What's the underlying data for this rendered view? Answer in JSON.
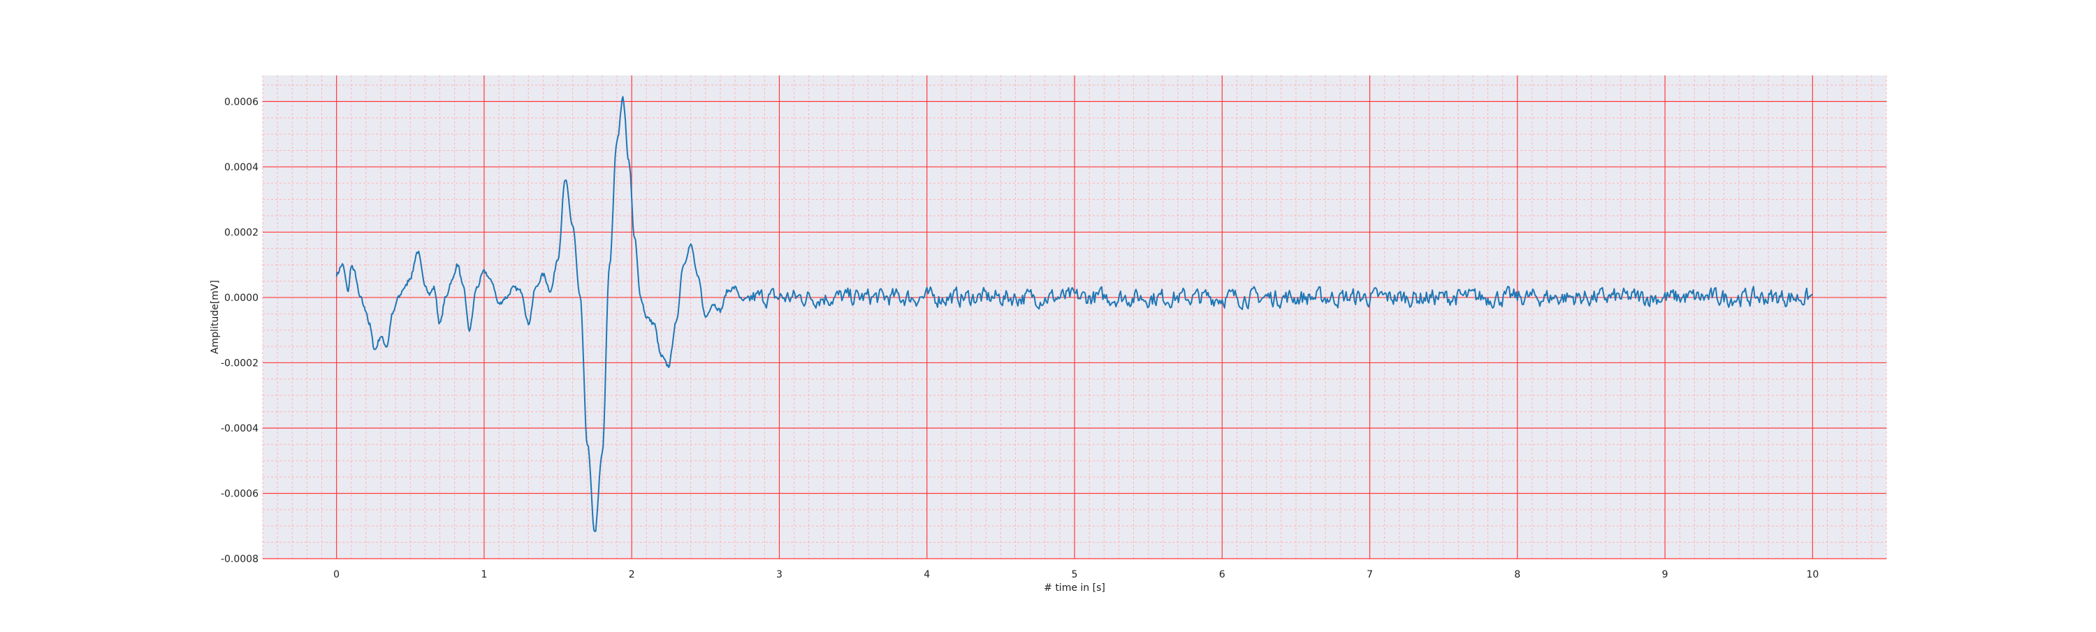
{
  "chart_data": {
    "type": "line",
    "title": "",
    "xlabel": "# time in [s]",
    "ylabel": "Amplitude[mV]",
    "xlim": [
      -0.5,
      10.5
    ],
    "ylim": [
      -0.0008,
      0.00068
    ],
    "grid": {
      "major": true,
      "minor": true,
      "major_color": "#ff3b3b",
      "minor_color": "#ffb3b3"
    },
    "background_color": "#eaeaf2",
    "line_color": "#1f77b4",
    "x_ticks": [
      0,
      1,
      2,
      3,
      4,
      5,
      6,
      7,
      8,
      9,
      10
    ],
    "x_tick_labels": [
      "0",
      "1",
      "2",
      "3",
      "4",
      "5",
      "6",
      "7",
      "8",
      "9",
      "10"
    ],
    "y_ticks": [
      -0.0008,
      -0.0006,
      -0.0004,
      -0.0002,
      0.0,
      0.0002,
      0.0004,
      0.0006
    ],
    "y_tick_labels": [
      "-0.0008",
      "-0.0006",
      "-0.0004",
      "-0.0002",
      "0.0000",
      "0.0002",
      "0.0004",
      "0.0006"
    ],
    "series": [
      {
        "x": [
          0.0,
          0.04,
          0.08,
          0.1,
          0.12,
          0.16,
          0.2,
          0.22,
          0.26,
          0.3,
          0.34,
          0.38,
          0.42,
          0.46,
          0.5,
          0.55,
          0.6,
          0.63,
          0.66,
          0.7,
          0.74,
          0.78,
          0.82,
          0.86,
          0.9,
          0.95,
          1.0,
          1.05,
          1.1,
          1.15,
          1.2,
          1.25,
          1.3,
          1.35,
          1.4,
          1.45,
          1.5,
          1.55,
          1.6,
          1.65,
          1.7,
          1.75,
          1.8,
          1.85,
          1.9,
          1.94,
          1.98,
          2.02,
          2.06,
          2.1,
          2.15,
          2.2,
          2.25,
          2.3,
          2.35,
          2.4,
          2.45,
          2.5,
          2.55,
          2.6,
          2.65,
          2.7,
          2.75,
          2.8
        ],
        "y": [
          7e-05,
          0.0001,
          2e-05,
          0.0001,
          8e-05,
          0.0,
          -4e-05,
          -8e-05,
          -0.00016,
          -0.00012,
          -0.00015,
          -5e-05,
          0.0,
          3e-05,
          6e-05,
          0.00014,
          4e-05,
          1e-05,
          3e-05,
          -8e-05,
          0.0,
          5e-05,
          0.0001,
          3e-05,
          -0.0001,
          3e-05,
          8e-05,
          5e-05,
          -2e-05,
          0.0,
          3e-05,
          2e-05,
          -8e-05,
          3e-05,
          7e-05,
          2e-05,
          0.00012,
          0.00036,
          0.00022,
          0.0,
          -0.00045,
          -0.00072,
          -0.00048,
          0.0001,
          0.00048,
          0.00061,
          0.00042,
          0.00018,
          0.0,
          -6e-05,
          -8e-05,
          -0.00018,
          -0.00021,
          -8e-05,
          0.0001,
          0.00016,
          6e-05,
          -6e-05,
          -2e-05,
          -4e-05,
          2e-05,
          3e-05,
          -1e-05,
          0.0
        ]
      }
    ],
    "noise_tail": {
      "x_start": 2.8,
      "x_end": 10.0,
      "amplitude": 5e-05
    }
  }
}
